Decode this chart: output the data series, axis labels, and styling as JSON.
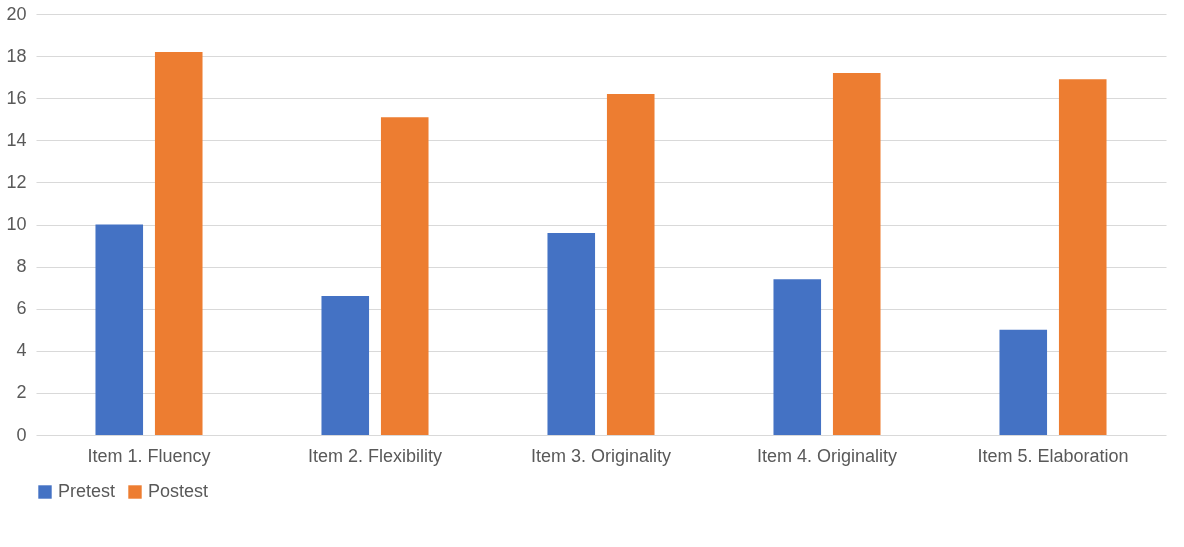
{
  "chart_data": {
    "type": "bar",
    "categories": [
      "Item 1. Fluency",
      "Item 2. Flexibility",
      "Item 3. Originality",
      "Item 4. Originality",
      "Item 5. Elaboration"
    ],
    "series": [
      {
        "name": "Pretest",
        "color": "#4472c4",
        "values": [
          10.0,
          6.6,
          9.6,
          7.4,
          5.0
        ]
      },
      {
        "name": "Postest",
        "color": "#ed7d31",
        "values": [
          18.2,
          15.1,
          16.2,
          17.2,
          16.9
        ]
      }
    ],
    "ylim": [
      0,
      20
    ],
    "yticks": [
      0,
      2,
      4,
      6,
      8,
      10,
      12,
      14,
      16,
      18,
      20
    ],
    "grid": "y",
    "legend": "bottom"
  }
}
